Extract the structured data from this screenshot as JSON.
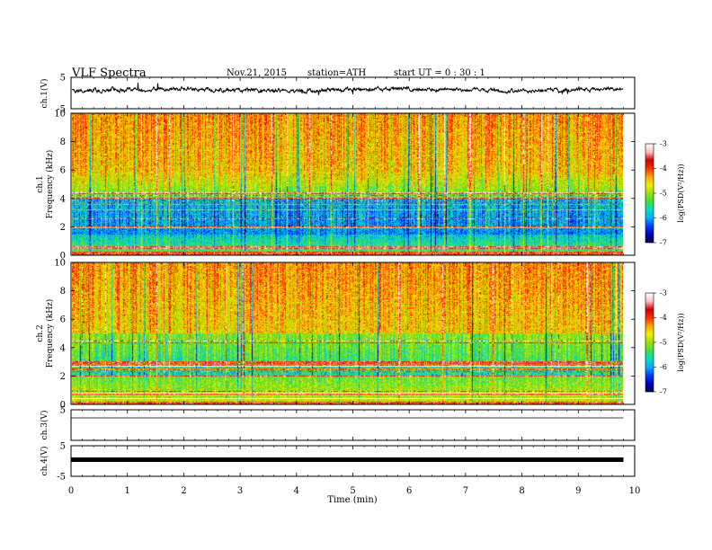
{
  "header": {
    "title": "VLF  Spectra",
    "date": "Nov.21, 2015",
    "station": "station=ATH",
    "start": "start  UT  =   0  : 30 : 1"
  },
  "colors": {
    "colormap": [
      "#000050",
      "#0000c0",
      "#0040ff",
      "#00b0ff",
      "#00e0c0",
      "#40e040",
      "#a0e000",
      "#f0f000",
      "#ffa000",
      "#ff3000",
      "#d00000",
      "#ffc0c0",
      "#ffffff"
    ]
  },
  "chart_data": [
    {
      "type": "line",
      "name": "ch1-waveform",
      "ylabel": "ch.1(V)",
      "ylim": [
        -5,
        5
      ],
      "yticks": [
        "5",
        "-5"
      ],
      "xlim": [
        0,
        10
      ],
      "baseline": 0.8
    },
    {
      "type": "heatmap",
      "name": "ch1-spectrogram",
      "ylabel": "ch.1\nFrequency (kHz)",
      "ylabel_lines": [
        "ch.1",
        "Frequency (kHz)"
      ],
      "ylim": [
        0,
        10
      ],
      "yticks": [
        "0",
        "2",
        "4",
        "6",
        "8",
        "10"
      ],
      "xlim": [
        0,
        10
      ],
      "colorbar": {
        "label": "log(PSD(V²/Hz))",
        "ticks": [
          "-3",
          "-4",
          "-5",
          "-6",
          "-7"
        ],
        "range": [
          -7,
          -3
        ]
      }
    },
    {
      "type": "heatmap",
      "name": "ch2-spectrogram",
      "ylabel": "ch.2\nFrequency (kHz)",
      "ylabel_lines": [
        "ch.2",
        "Frequency (kHz)"
      ],
      "ylim": [
        0,
        10
      ],
      "yticks": [
        "0",
        "2",
        "4",
        "6",
        "8",
        "10"
      ],
      "xlim": [
        0,
        10
      ],
      "colorbar": {
        "label": "log(PSD(V²/Hz))",
        "ticks": [
          "-3",
          "-4",
          "-5",
          "-6",
          "-7"
        ],
        "range": [
          -7,
          -3
        ]
      }
    },
    {
      "type": "line",
      "name": "ch3-waveform",
      "ylabel": "ch.3(V)",
      "ylim": [
        -5,
        5
      ],
      "yticks": [
        "5"
      ],
      "xlim": [
        0,
        10
      ],
      "baseline": 0
    },
    {
      "type": "line",
      "name": "ch4-waveform",
      "ylabel": "ch.4(V)",
      "ylim": [
        -5,
        5
      ],
      "yticks": [
        "5",
        "-5"
      ],
      "xlim": [
        0,
        10
      ],
      "baseline": 0
    }
  ],
  "xaxis": {
    "label": "Time  (min)",
    "ticks": [
      "0",
      "1",
      "2",
      "3",
      "4",
      "5",
      "6",
      "7",
      "8",
      "9",
      "10"
    ],
    "data_end": 9.8
  }
}
